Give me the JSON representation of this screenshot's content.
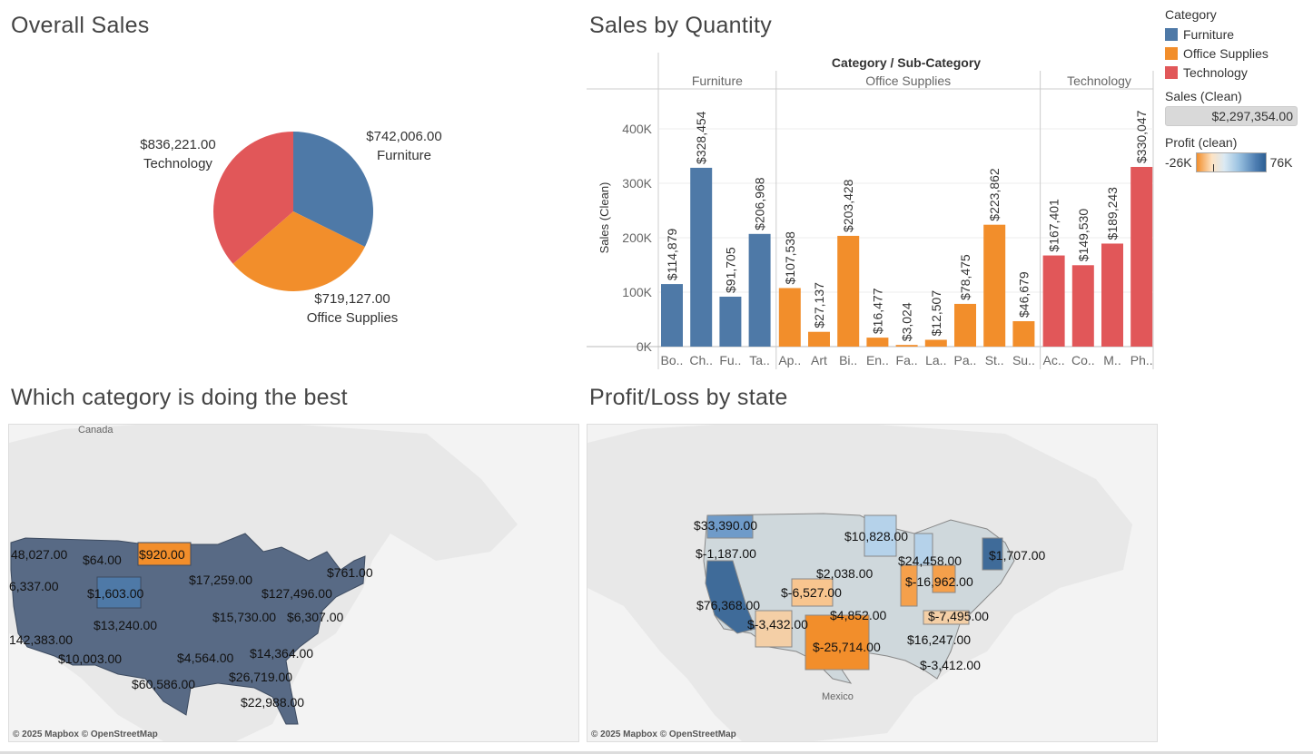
{
  "titles": {
    "overall_sales": "Overall Sales",
    "sales_by_quantity": "Sales by Quantity",
    "best_category": "Which category is doing the best",
    "profit_loss": "Profit/Loss by state"
  },
  "colors": {
    "furniture": "#4e79a7",
    "office_supplies": "#f28e2b",
    "technology": "#e15759"
  },
  "legend": {
    "category_title": "Category",
    "items": [
      "Furniture",
      "Office Supplies",
      "Technology"
    ],
    "sales_title": "Sales (Clean)",
    "sales_value": "$2,297,354.00",
    "profit_title": "Profit (clean)",
    "profit_min": "-26K",
    "profit_max": "76K"
  },
  "chart_data": [
    {
      "type": "pie",
      "title": "Overall Sales",
      "slices": [
        {
          "label": "Furniture",
          "value": 742006,
          "value_label": "$742,006.00",
          "color": "#4e79a7"
        },
        {
          "label": "Office Supplies",
          "value": 719127,
          "value_label": "$719,127.00",
          "color": "#f28e2b"
        },
        {
          "label": "Technology",
          "value": 836221,
          "value_label": "$836,221.00",
          "color": "#e15759"
        }
      ]
    },
    {
      "type": "bar",
      "title": "Sales by Quantity",
      "header": "Category / Sub-Category",
      "ylabel": "Sales (Clean)",
      "ylim": [
        0,
        450000
      ],
      "yticks": [
        0,
        100000,
        200000,
        300000,
        400000
      ],
      "ytick_labels": [
        "0K",
        "100K",
        "200K",
        "300K",
        "400K"
      ],
      "groups": [
        {
          "name": "Furniture",
          "color": "#4e79a7",
          "categories": [
            "Bo..",
            "Ch..",
            "Fu..",
            "Ta.."
          ],
          "values": [
            114879,
            328454,
            91705,
            206968
          ],
          "value_labels": [
            "$114,879",
            "$328,454",
            "$91,705",
            "$206,968"
          ]
        },
        {
          "name": "Office Supplies",
          "color": "#f28e2b",
          "categories": [
            "Ap..",
            "Art",
            "Bi..",
            "En..",
            "Fa..",
            "La..",
            "Pa..",
            "St..",
            "Su.."
          ],
          "values": [
            107538,
            27137,
            203428,
            16477,
            3024,
            12507,
            78475,
            223862,
            46679
          ],
          "value_labels": [
            "$107,538",
            "$27,137",
            "$203,428",
            "$16,477",
            "$3,024",
            "$12,507",
            "$78,475",
            "$223,862",
            "$46,679"
          ]
        },
        {
          "name": "Technology",
          "color": "#e15759",
          "categories": [
            "Ac..",
            "Co..",
            "M..",
            "Ph.."
          ],
          "values": [
            167401,
            149530,
            189243,
            330047
          ],
          "value_labels": [
            "$167,401",
            "$149,530",
            "$189,243",
            "$330,047"
          ]
        }
      ]
    }
  ],
  "map_left": {
    "country_label": "Canada",
    "attribution": "© 2025 Mapbox © OpenStreetMap",
    "labels": [
      "48,027.00",
      "$64.00",
      "$920.00",
      "$761.00",
      "$17,259.00",
      "6,337.00",
      "$1,603.00",
      "$127,496.00",
      "$15,730.00",
      "$6,307.00",
      "$13,240.00",
      "142,383.00",
      "$10,003.00",
      "$4,564.00",
      "$14,364.00",
      "$26,719.00",
      "$60,586.00",
      "$22,988.00"
    ]
  },
  "map_right": {
    "country_label": "Mexico",
    "attribution": "© 2025 Mapbox © OpenStreetMap",
    "labels": [
      "$33,390.00",
      "$10,828.00",
      "$-1,187.00",
      "$24,458.00",
      "$1,707.00",
      "$2,038.00",
      "$-16,962.00",
      "$-6,527.00",
      "$76,368.00",
      "$-3,432.00",
      "$4,852.00",
      "$-7,495.00",
      "$-25,714.00",
      "$16,247.00",
      "$-3,412.00"
    ]
  }
}
